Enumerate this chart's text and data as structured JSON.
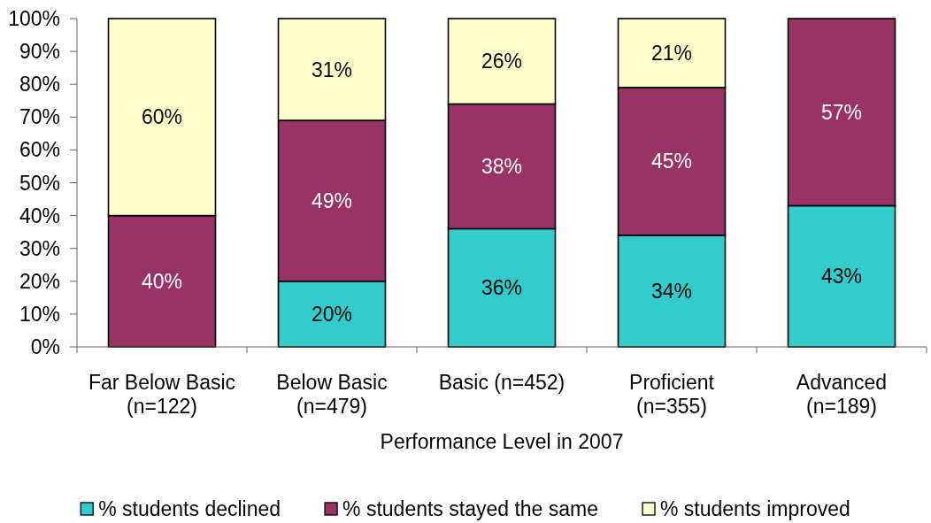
{
  "chart_data": {
    "type": "bar",
    "stacked": true,
    "xlabel": "Performance Level in 2007",
    "categories": [
      "Far Below Basic (n=122)",
      "Below Basic (n=479)",
      "Basic (n=452)",
      "Proficient (n=355)",
      "Advanced (n=189)"
    ],
    "series": [
      {
        "name": "% students declined",
        "color": "#33cccc",
        "values": [
          0,
          20,
          36,
          34,
          43
        ],
        "value_labels": [
          null,
          "20%",
          "36%",
          "34%",
          "43%"
        ]
      },
      {
        "name": "% students stayed the same",
        "color": "#993366",
        "values": [
          40,
          49,
          38,
          45,
          57
        ],
        "value_labels": [
          "40%",
          "49%",
          "38%",
          "45%",
          "57%"
        ]
      },
      {
        "name": "% students improved",
        "color": "#ffffcc",
        "values": [
          60,
          31,
          26,
          21,
          0
        ],
        "value_labels": [
          "60%",
          "31%",
          "26%",
          "21%",
          null
        ]
      }
    ],
    "ylim": [
      0,
      100
    ],
    "yticks": [
      {
        "value": 0,
        "label": "0%"
      },
      {
        "value": 10,
        "label": "10%"
      },
      {
        "value": 20,
        "label": "20%"
      },
      {
        "value": 30,
        "label": "30%"
      },
      {
        "value": 40,
        "label": "40%"
      },
      {
        "value": 50,
        "label": "50%"
      },
      {
        "value": 60,
        "label": "60%"
      },
      {
        "value": 70,
        "label": "70%"
      },
      {
        "value": 80,
        "label": "80%"
      },
      {
        "value": 90,
        "label": "90%"
      },
      {
        "value": 100,
        "label": "100%"
      }
    ],
    "legend": "bottom"
  }
}
